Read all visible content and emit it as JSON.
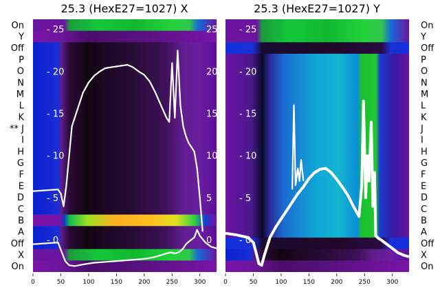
{
  "chart_data": [
    {
      "type": "heatmap",
      "title": "25.3 (HexE27=1027) X",
      "row_labels": [
        "On",
        "Y",
        "Off",
        "P",
        "O",
        "N",
        "M",
        "L",
        "K",
        "** J",
        "I",
        "H",
        "G",
        "F",
        "E",
        "D",
        "C",
        "B",
        "A",
        "Off",
        "X",
        "On"
      ],
      "xlim": [
        0,
        330
      ],
      "x_ticks": [
        0,
        50,
        100,
        150,
        200,
        250,
        300
      ],
      "y_ticks": [
        0,
        5,
        10,
        15,
        20,
        25
      ],
      "ylim": [
        -3.8,
        26.2
      ],
      "grid": false,
      "rows": [
        {
          "label": "On",
          "pattern": "green-bright"
        },
        {
          "label": "Y",
          "pattern": "purple"
        },
        {
          "label": "Off",
          "pattern": "dark-trough"
        },
        {
          "label": "P",
          "pattern": "dark-trough"
        },
        {
          "label": "O",
          "pattern": "dark-trough"
        },
        {
          "label": "N",
          "pattern": "dark-trough"
        },
        {
          "label": "M",
          "pattern": "dark-trough"
        },
        {
          "label": "L",
          "pattern": "dark-trough"
        },
        {
          "label": "K",
          "pattern": "dark-trough"
        },
        {
          "label": "** J",
          "pattern": "dark-trough"
        },
        {
          "label": "I",
          "pattern": "dark-trough"
        },
        {
          "label": "H",
          "pattern": "dark-trough"
        },
        {
          "label": "G",
          "pattern": "dark-trough"
        },
        {
          "label": "F",
          "pattern": "dark-trough"
        },
        {
          "label": "E",
          "pattern": "dark-trough"
        },
        {
          "label": "D",
          "pattern": "dark-trough"
        },
        {
          "label": "C",
          "pattern": "dark-trough"
        },
        {
          "label": "B",
          "pattern": "hot"
        },
        {
          "label": "A",
          "pattern": "dark-trough"
        },
        {
          "label": "Off",
          "pattern": "dark-trough"
        },
        {
          "label": "X",
          "pattern": "green-bright"
        },
        {
          "label": "On",
          "pattern": "purple"
        }
      ],
      "series": [
        {
          "x": [
            0,
            45,
            52,
            58,
            65,
            75,
            90,
            110,
            130,
            150,
            170,
            190,
            205,
            220,
            235,
            245,
            250,
            255,
            260,
            265,
            270,
            275,
            280,
            290,
            295,
            300,
            310,
            320,
            330
          ],
          "y": [
            -0.5,
            -0.3,
            -1.5,
            -2.5,
            -3.0,
            -3.1,
            -2.9,
            -2.7,
            -2.6,
            -2.5,
            -2.4,
            -2.3,
            -2.2,
            -2.0,
            -1.7,
            -1.5,
            -1.5,
            -1.6,
            -1.5,
            -1.3,
            -1.0,
            -0.5,
            -0.2,
            0.3,
            1.2,
            0.5,
            -0.3,
            -0.8,
            -1.0
          ]
        },
        {
          "x": [
            0,
            45,
            50,
            55,
            60,
            65,
            70,
            80,
            90,
            100,
            110,
            120,
            130,
            140,
            150,
            160,
            170,
            180,
            190,
            200,
            210,
            220,
            230,
            240,
            245,
            250,
            255,
            260,
            265,
            270,
            275,
            280,
            285,
            290,
            295,
            300,
            305
          ],
          "y": [
            5.8,
            6.0,
            5.5,
            4.0,
            6.5,
            10.0,
            13.5,
            15.5,
            17.5,
            18.7,
            19.5,
            20.0,
            20.4,
            20.5,
            20.6,
            20.7,
            20.8,
            20.5,
            20.0,
            19.6,
            18.8,
            17.5,
            16.0,
            14.5,
            14.0,
            21.0,
            14.5,
            22.5,
            16.0,
            13.5,
            12.3,
            11.5,
            11.0,
            10.5,
            8.5,
            5.0,
            1.0
          ]
        }
      ]
    },
    {
      "type": "heatmap",
      "title": "25.3 (HexE27=1027) Y",
      "row_labels": [
        "On",
        "Y",
        "Off",
        "P",
        "O",
        "N",
        "M",
        "L",
        "K",
        "J",
        "I",
        "H",
        "G",
        "F",
        "E",
        "D",
        "C",
        "B",
        "A",
        "Off",
        "X",
        "On"
      ],
      "xlim": [
        0,
        330
      ],
      "x_ticks": [
        0,
        50,
        100,
        150,
        200,
        250,
        300
      ],
      "y_ticks": [
        0,
        5,
        10,
        15,
        20,
        25
      ],
      "ylim": [
        -3.8,
        26.2
      ],
      "grid": false,
      "rows": [
        {
          "label": "On",
          "pattern": "green-bright"
        },
        {
          "label": "Y",
          "pattern": "green-bright"
        },
        {
          "label": "Off",
          "pattern": "blue-dark"
        },
        {
          "label": "P",
          "pattern": "cyan-trough"
        },
        {
          "label": "O",
          "pattern": "cyan-trough"
        },
        {
          "label": "N",
          "pattern": "cyan-trough"
        },
        {
          "label": "M",
          "pattern": "cyan-trough"
        },
        {
          "label": "L",
          "pattern": "cyan-trough"
        },
        {
          "label": "K",
          "pattern": "cyan-trough"
        },
        {
          "label": "J",
          "pattern": "cyan-trough"
        },
        {
          "label": "I",
          "pattern": "cyan-trough"
        },
        {
          "label": "H",
          "pattern": "cyan-trough"
        },
        {
          "label": "G",
          "pattern": "cyan-trough"
        },
        {
          "label": "F",
          "pattern": "cyan-trough"
        },
        {
          "label": "E",
          "pattern": "cyan-trough"
        },
        {
          "label": "D",
          "pattern": "cyan-trough"
        },
        {
          "label": "C",
          "pattern": "cyan-trough"
        },
        {
          "label": "B",
          "pattern": "cyan-trough"
        },
        {
          "label": "A",
          "pattern": "cyan-trough"
        },
        {
          "label": "Off",
          "pattern": "blue-dark"
        },
        {
          "label": "X",
          "pattern": "dark-trough"
        },
        {
          "label": "On",
          "pattern": "purple"
        }
      ],
      "series": [
        {
          "x": [
            0,
            20,
            40,
            50,
            55,
            60,
            65,
            70,
            80,
            90,
            100,
            110,
            120,
            130,
            140,
            150,
            160,
            170,
            180,
            190,
            200,
            210,
            220,
            230,
            240,
            245,
            248,
            252,
            255,
            258,
            262,
            265,
            268,
            270,
            275,
            280,
            290,
            300,
            310,
            320,
            330
          ],
          "y": [
            0.8,
            0.6,
            0.3,
            -0.3,
            -1.5,
            -2.8,
            -3.0,
            -1.8,
            0.3,
            1.5,
            2.5,
            3.5,
            4.5,
            5.5,
            6.3,
            7.3,
            8.0,
            8.4,
            8.5,
            8.0,
            7.2,
            6.3,
            5.3,
            4.0,
            2.8,
            6.5,
            16.5,
            5.0,
            10.0,
            7.0,
            14.0,
            4.0,
            8.0,
            0.5,
            0.2,
            0.0,
            -0.5,
            -1.0,
            -1.5,
            -1.8,
            -2.0
          ]
        },
        {
          "x": [
            120,
            123,
            126,
            130,
            133,
            136,
            140
          ],
          "y": [
            6.0,
            16.0,
            6.5,
            8.5,
            7.0,
            9.5,
            7.0
          ]
        }
      ]
    }
  ]
}
